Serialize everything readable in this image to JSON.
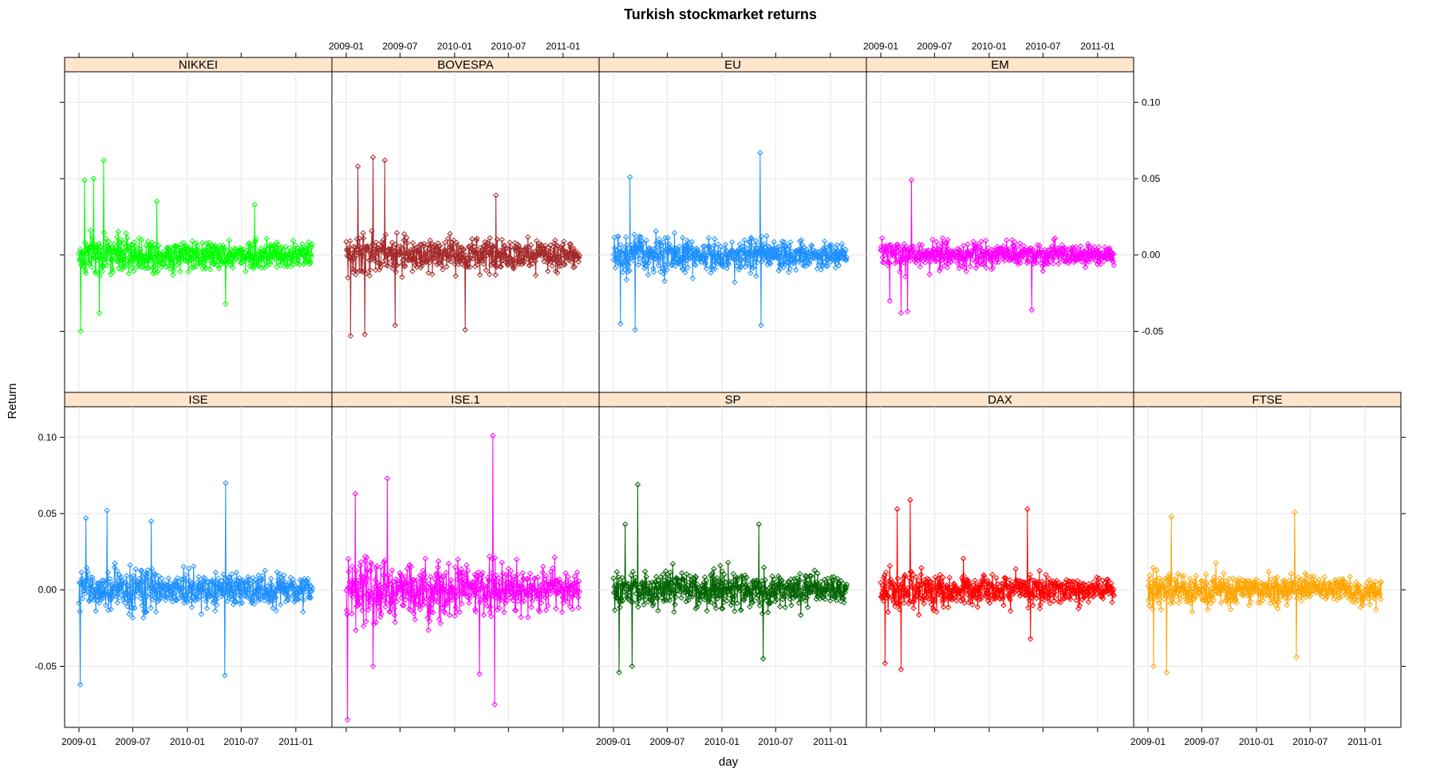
{
  "chart_data": {
    "type": "line",
    "layout": "trellis",
    "title": "Turkish stockmarket returns",
    "xlabel": "day",
    "ylabel": "Return",
    "ylim": [
      -0.09,
      0.12
    ],
    "y_ticks": [
      -0.05,
      0.0,
      0.05,
      0.1
    ],
    "y_tick_labels": [
      "-0.05",
      "0.00",
      "0.05",
      "0.10"
    ],
    "x_range": [
      "2009-01-01",
      "2011-03-15"
    ],
    "x_ticks": [
      "2009-01-01",
      "2009-07-01",
      "2010-01-01",
      "2010-07-01",
      "2011-01-01"
    ],
    "x_tick_labels": [
      "2009-01",
      "2009-07",
      "2010-01",
      "2010-07",
      "2011-01"
    ],
    "grid": true,
    "strip_color": "#ffe5cc",
    "panels": [
      {
        "name": "NIKKEI",
        "color": "#00ff00",
        "approx_range": [
          -0.05,
          0.062
        ],
        "spikes": [
          {
            "x": "2009-01-07",
            "y": -0.05
          },
          {
            "x": "2009-01-20",
            "y": 0.049
          },
          {
            "x": "2009-02-20",
            "y": 0.05
          },
          {
            "x": "2009-03-25",
            "y": 0.062
          },
          {
            "x": "2009-03-10",
            "y": -0.038
          },
          {
            "x": "2009-09-20",
            "y": 0.035
          },
          {
            "x": "2010-05-10",
            "y": -0.032
          },
          {
            "x": "2010-08-15",
            "y": 0.033
          }
        ]
      },
      {
        "name": "BOVESPA",
        "color": "#a52a2a",
        "approx_range": [
          -0.053,
          0.064
        ],
        "spikes": [
          {
            "x": "2009-01-15",
            "y": -0.053
          },
          {
            "x": "2009-02-10",
            "y": 0.058
          },
          {
            "x": "2009-03-05",
            "y": -0.052
          },
          {
            "x": "2009-04-01",
            "y": 0.064
          },
          {
            "x": "2009-05-10",
            "y": 0.062
          },
          {
            "x": "2009-06-15",
            "y": -0.046
          },
          {
            "x": "2010-02-05",
            "y": -0.049
          },
          {
            "x": "2010-05-20",
            "y": 0.039
          }
        ]
      },
      {
        "name": "EU",
        "color": "#1e90ff",
        "approx_range": [
          -0.049,
          0.067
        ],
        "spikes": [
          {
            "x": "2009-01-25",
            "y": -0.045
          },
          {
            "x": "2009-02-25",
            "y": 0.051
          },
          {
            "x": "2009-03-15",
            "y": -0.049
          },
          {
            "x": "2010-05-10",
            "y": 0.067
          },
          {
            "x": "2010-05-12",
            "y": -0.046
          }
        ]
      },
      {
        "name": "EM",
        "color": "#ff00ff",
        "approx_range": [
          -0.038,
          0.049
        ],
        "spikes": [
          {
            "x": "2009-02-01",
            "y": -0.03
          },
          {
            "x": "2009-03-10",
            "y": -0.038
          },
          {
            "x": "2009-04-15",
            "y": 0.049
          },
          {
            "x": "2009-04-01",
            "y": -0.037
          },
          {
            "x": "2010-05-25",
            "y": -0.036
          }
        ]
      },
      {
        "name": "ISE",
        "color": "#1e90ff",
        "approx_range": [
          -0.062,
          0.07
        ],
        "spikes": [
          {
            "x": "2009-01-05",
            "y": -0.062
          },
          {
            "x": "2009-01-25",
            "y": 0.047
          },
          {
            "x": "2009-04-05",
            "y": 0.052
          },
          {
            "x": "2010-05-10",
            "y": 0.07
          },
          {
            "x": "2010-05-07",
            "y": -0.056
          },
          {
            "x": "2009-09-01",
            "y": 0.045
          }
        ]
      },
      {
        "name": "ISE.1",
        "color": "#ff00ff",
        "approx_range": [
          -0.085,
          0.101
        ],
        "spikes": [
          {
            "x": "2009-01-05",
            "y": -0.085
          },
          {
            "x": "2009-02-01",
            "y": 0.063
          },
          {
            "x": "2009-05-20",
            "y": 0.073
          },
          {
            "x": "2009-04-01",
            "y": -0.05
          },
          {
            "x": "2010-05-10",
            "y": 0.101
          },
          {
            "x": "2010-05-15",
            "y": -0.075
          },
          {
            "x": "2010-03-25",
            "y": -0.055
          }
        ]
      },
      {
        "name": "SP",
        "color": "#006400",
        "approx_range": [
          -0.054,
          0.069
        ],
        "spikes": [
          {
            "x": "2009-01-20",
            "y": -0.054
          },
          {
            "x": "2009-02-10",
            "y": 0.043
          },
          {
            "x": "2009-03-23",
            "y": 0.069
          },
          {
            "x": "2009-03-05",
            "y": -0.05
          },
          {
            "x": "2010-05-06",
            "y": 0.043
          },
          {
            "x": "2010-05-20",
            "y": -0.045
          }
        ]
      },
      {
        "name": "DAX",
        "color": "#ff0000",
        "approx_range": [
          -0.052,
          0.059
        ],
        "spikes": [
          {
            "x": "2009-01-15",
            "y": -0.048
          },
          {
            "x": "2009-02-25",
            "y": 0.053
          },
          {
            "x": "2009-04-10",
            "y": 0.059
          },
          {
            "x": "2009-03-10",
            "y": -0.052
          },
          {
            "x": "2010-05-10",
            "y": 0.053
          },
          {
            "x": "2010-05-20",
            "y": -0.032
          }
        ]
      },
      {
        "name": "FTSE",
        "color": "#ffa500",
        "approx_range": [
          -0.054,
          0.051
        ],
        "spikes": [
          {
            "x": "2009-01-20",
            "y": -0.05
          },
          {
            "x": "2009-03-05",
            "y": -0.054
          },
          {
            "x": "2009-03-20",
            "y": 0.048
          },
          {
            "x": "2010-05-10",
            "y": 0.051
          },
          {
            "x": "2010-05-15",
            "y": -0.044
          }
        ]
      }
    ]
  }
}
